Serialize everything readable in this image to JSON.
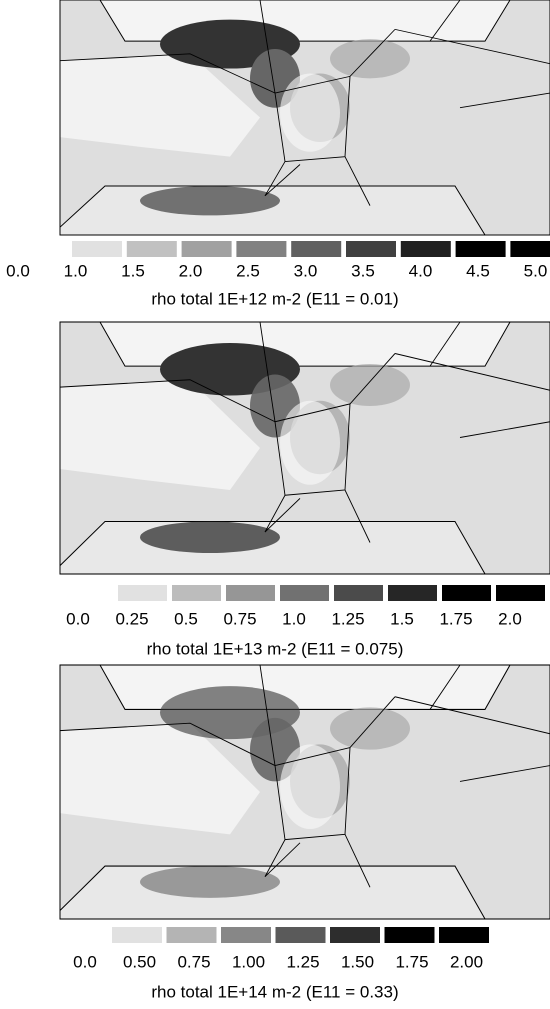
{
  "panels": [
    {
      "levels": [
        "0.0",
        "1.0",
        "1.5",
        "2.0",
        "2.5",
        "3.0",
        "3.5",
        "4.0",
        "4.5",
        "5.0"
      ],
      "caption": "rho total 1E+12 m-2 (E11 = 0.01)"
    },
    {
      "levels": [
        "0.0",
        "0.25",
        "0.5",
        "0.75",
        "1.0",
        "1.25",
        "1.5",
        "1.75",
        "2.0"
      ],
      "caption": "rho total 1E+13 m-2 (E11 = 0.075)"
    },
    {
      "levels": [
        "0.0",
        "0.50",
        "0.75",
        "1.00",
        "1.25",
        "1.50",
        "1.75",
        "2.00"
      ],
      "caption": "rho total 1E+14 m-2 (E11 = 0.33)"
    }
  ]
}
